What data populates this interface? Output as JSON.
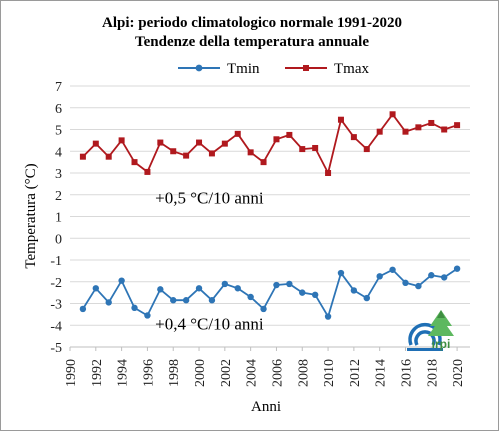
{
  "chart_data": {
    "type": "line",
    "title": "Alpi: periodo climatologico normale 1991-2020",
    "subtitle": "Tendenze della temperatura annuale",
    "xlabel": "Anni",
    "ylabel": "Temperatura (°C)",
    "xlim": [
      1990,
      2021
    ],
    "ylim": [
      -5,
      7
    ],
    "x_ticks": [
      1990,
      1992,
      1994,
      1996,
      1998,
      2000,
      2002,
      2004,
      2006,
      2008,
      2010,
      2012,
      2014,
      2016,
      2018,
      2020
    ],
    "y_ticks": [
      -5,
      -4,
      -3,
      -2,
      -1,
      0,
      1,
      2,
      3,
      4,
      5,
      6,
      7
    ],
    "grid": "horizontal",
    "legend_position": "top",
    "x": [
      1991,
      1992,
      1993,
      1994,
      1995,
      1996,
      1997,
      1998,
      1999,
      2000,
      2001,
      2002,
      2003,
      2004,
      2005,
      2006,
      2007,
      2008,
      2009,
      2010,
      2011,
      2012,
      2013,
      2014,
      2015,
      2016,
      2017,
      2018,
      2019,
      2020
    ],
    "series": [
      {
        "name": "Tmin",
        "color": "#2E75B6",
        "marker": "circle",
        "values": [
          -3.25,
          -2.3,
          -2.95,
          -1.95,
          -3.2,
          -3.55,
          -2.35,
          -2.85,
          -2.85,
          -2.3,
          -2.85,
          -2.1,
          -2.3,
          -2.7,
          -3.25,
          -2.15,
          -2.1,
          -2.5,
          -2.6,
          -3.6,
          -1.6,
          -2.4,
          -2.75,
          -1.75,
          -1.45,
          -2.05,
          -2.2,
          -1.7,
          -1.8,
          -1.4
        ]
      },
      {
        "name": "Tmax",
        "color": "#B0191E",
        "marker": "square",
        "values": [
          3.75,
          4.35,
          3.75,
          4.5,
          3.5,
          3.05,
          4.4,
          4.0,
          3.8,
          4.4,
          3.9,
          4.35,
          4.8,
          3.95,
          3.5,
          4.55,
          4.75,
          4.1,
          4.15,
          3.0,
          5.45,
          4.65,
          4.1,
          4.9,
          5.7,
          4.9,
          5.1,
          5.3,
          5.0,
          5.2
        ]
      }
    ],
    "annotations": [
      {
        "text": "+0,5 °C/10 anni",
        "series": "Tmax"
      },
      {
        "text": "+0,4 °C/10 anni",
        "series": "Tmin"
      }
    ],
    "logos": [
      {
        "name": "cnr-logo-icon",
        "color": "#1F6FB5"
      },
      {
        "name": "irpi-logo-icon",
        "color": "#4CAF50",
        "label": "irpi"
      }
    ]
  }
}
